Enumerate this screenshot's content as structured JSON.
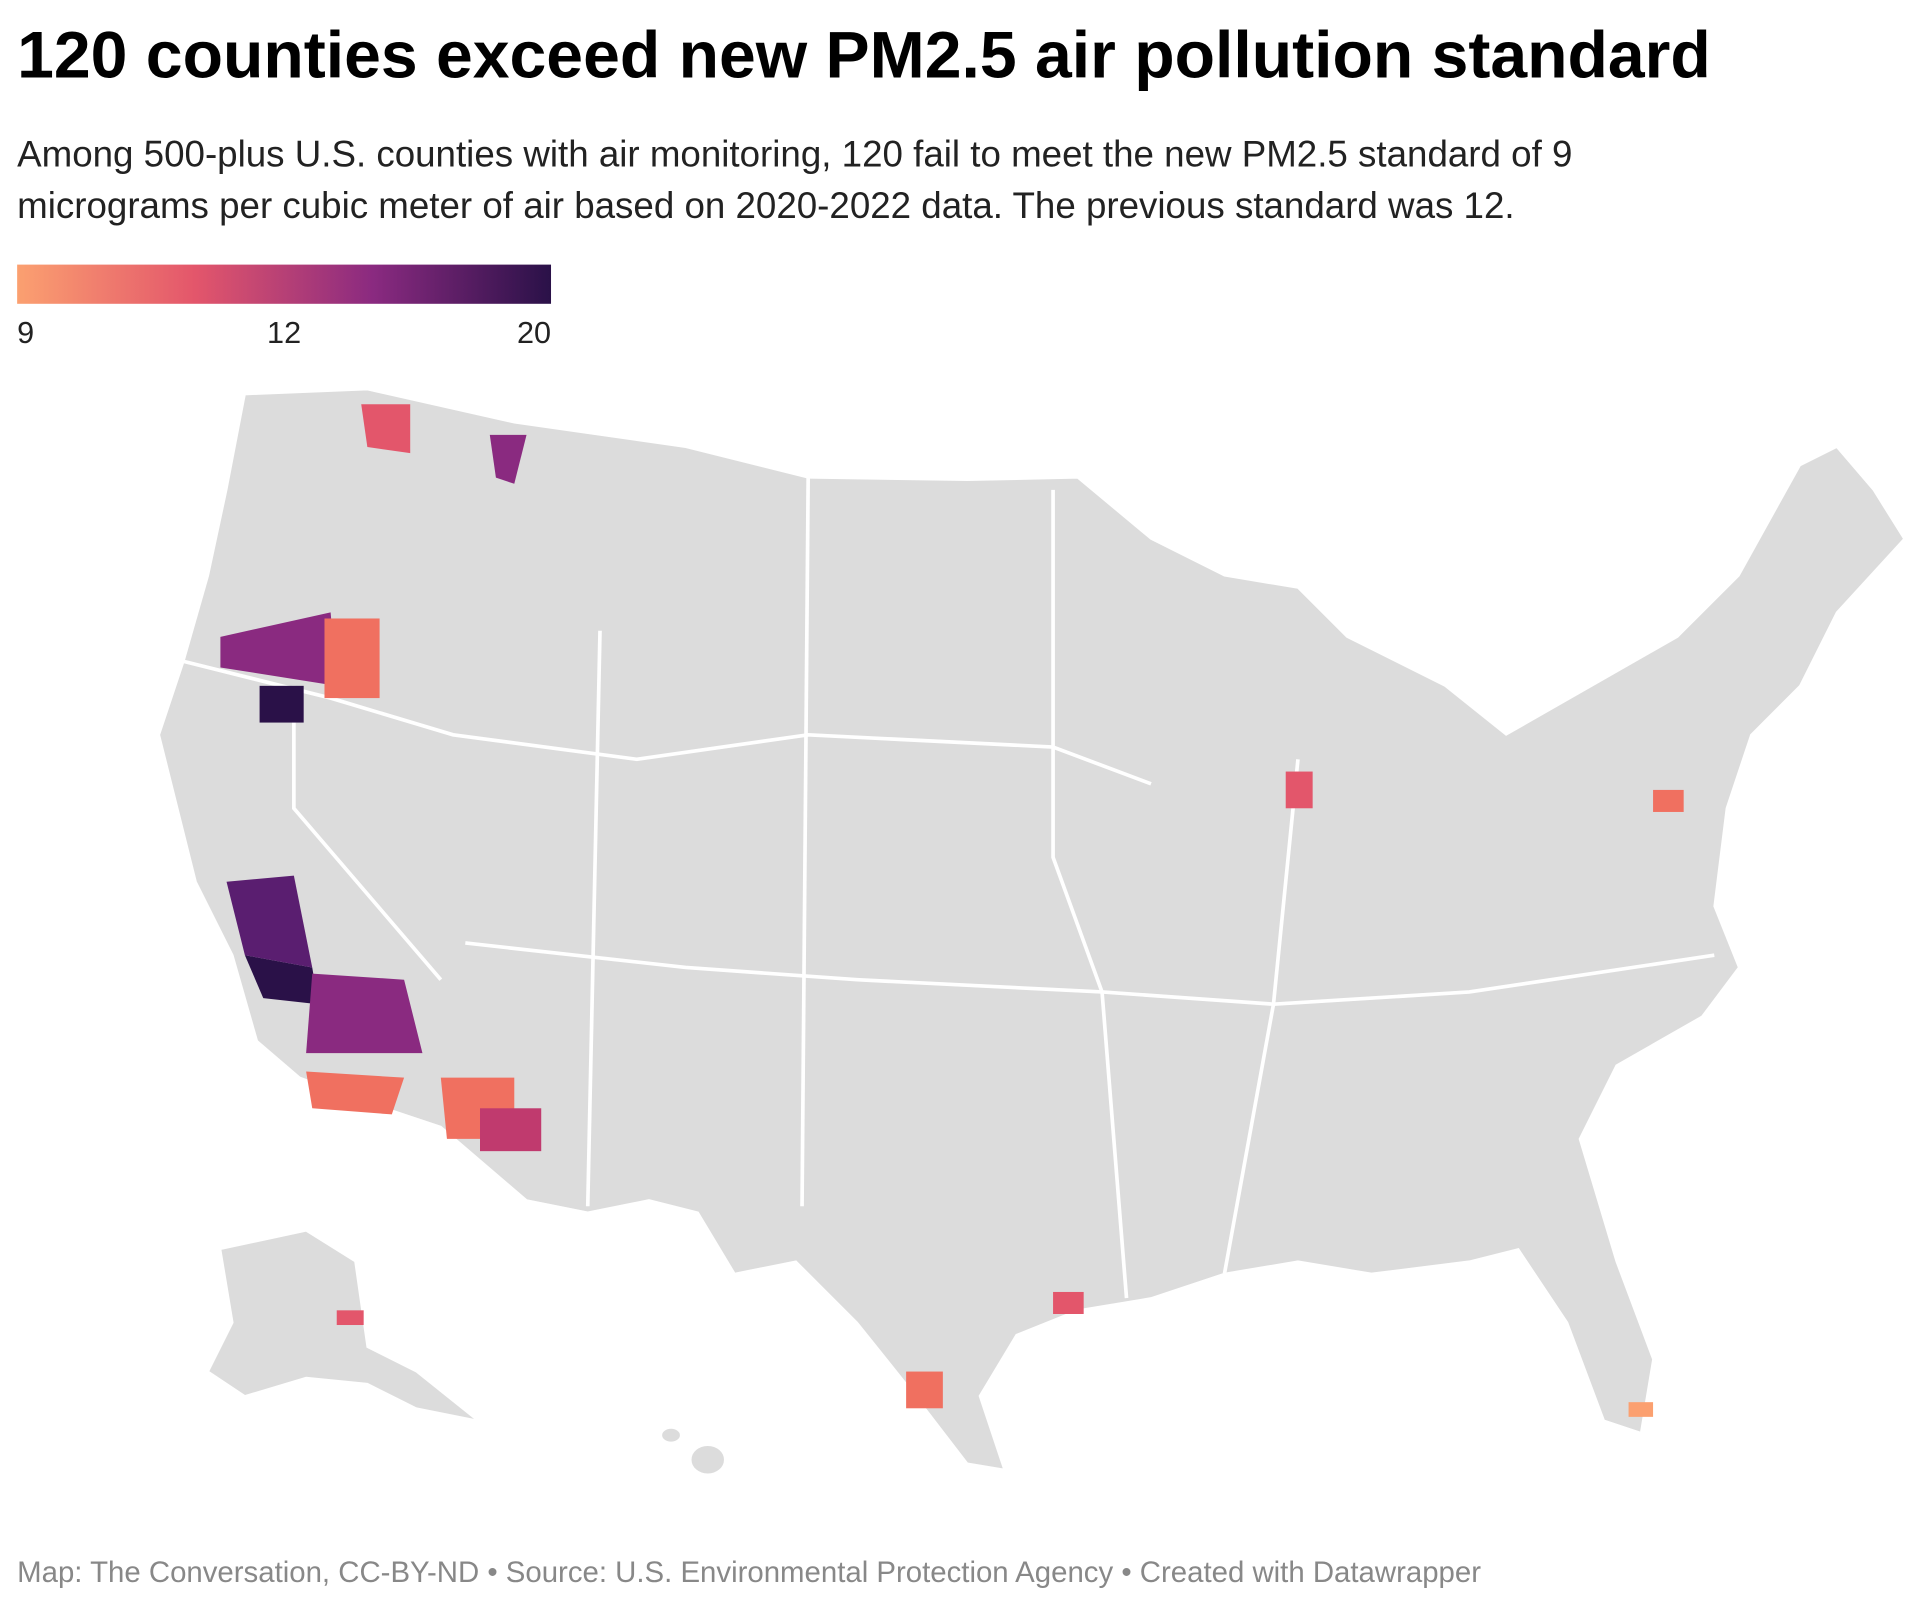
{
  "title": "120 counties exceed new PM2.5 air pollution standard",
  "subtitle": [
    "Among 500-plus U.S. counties with air monitoring, 120 fail to meet the new PM2.5 standard of 9",
    "micrograms per cubic meter of air based on 2020-2022 data. The previous standard was 12."
  ],
  "legend": {
    "ticks": [
      9,
      12,
      20
    ],
    "colors": [
      "#fba070",
      "#e3566b",
      "#8a2a80",
      "#2a1148"
    ]
  },
  "footer": "Map: The Conversation, CC-BY-ND • Source: U.S. Environmental Protection Agency • Created with Datawrapper"
}
